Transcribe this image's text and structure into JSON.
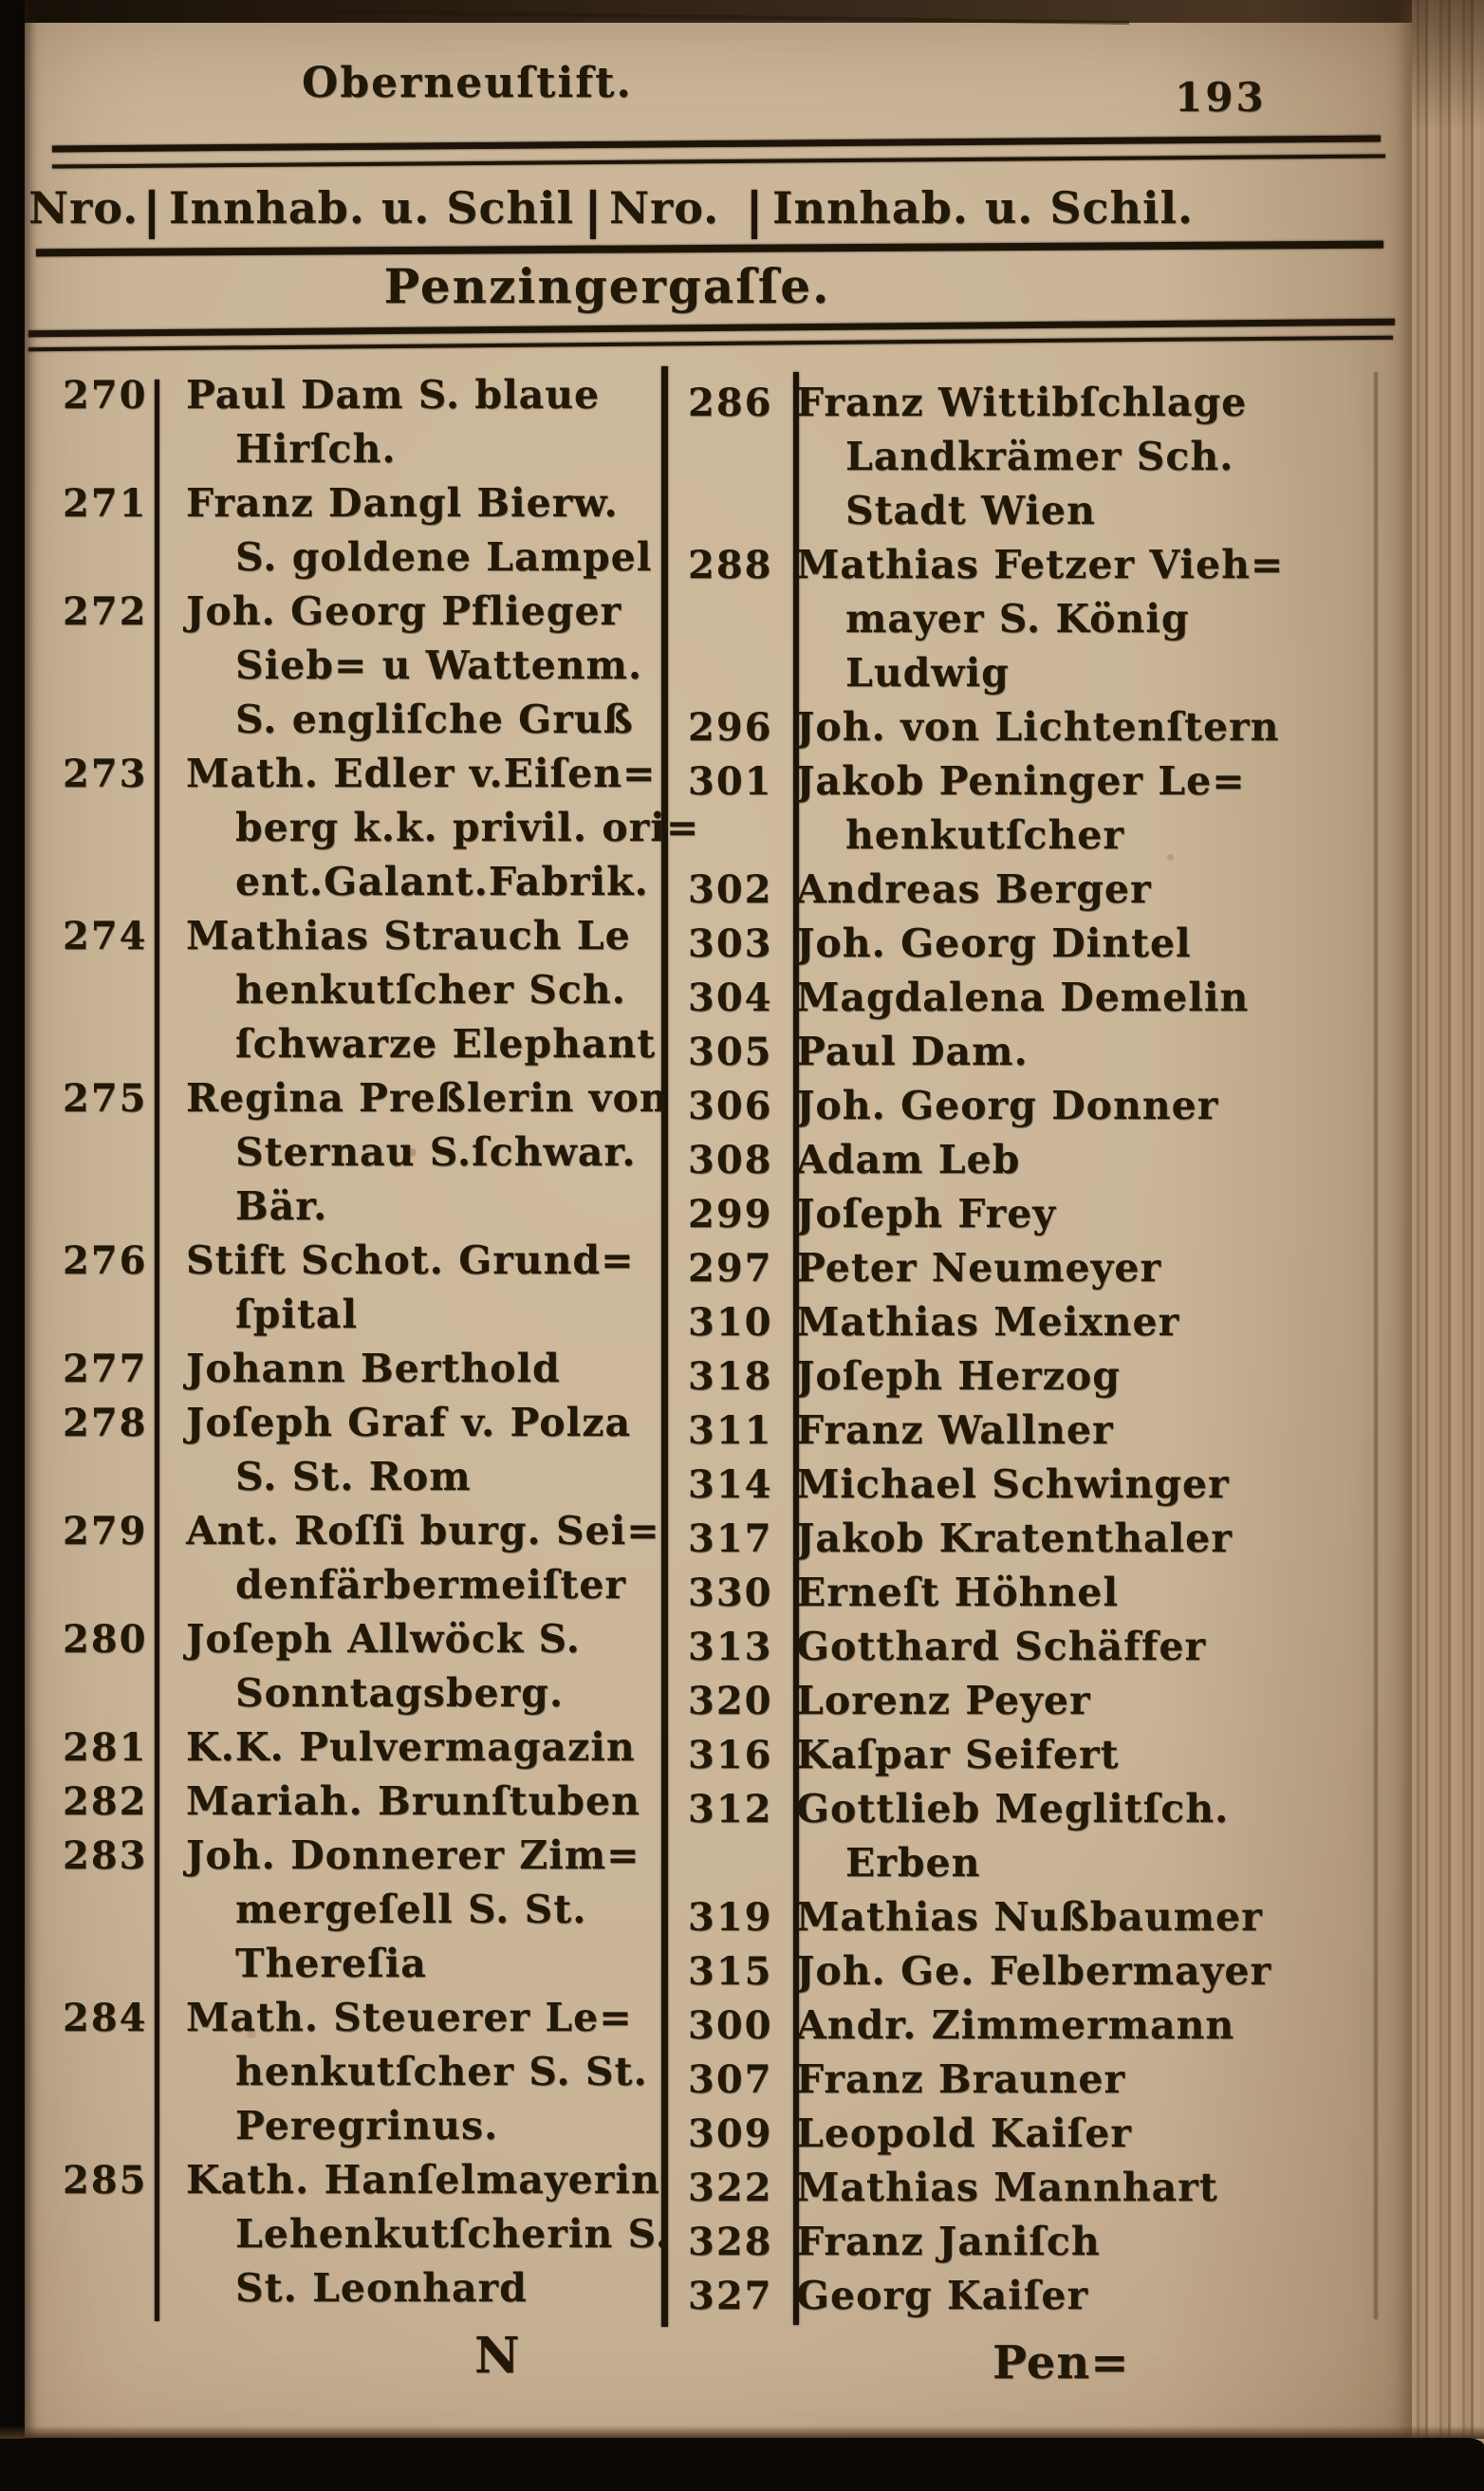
{
  "colors": {
    "paper": "#c9b497",
    "ink": "#221808",
    "fore_edge_band": "#a98c6b",
    "scan_border": "#0c0806"
  },
  "header": {
    "running_title": "Oberneuſtift.",
    "page_number": "193",
    "columns_header": {
      "nro_left": "Nro.",
      "label_left": "Innhab. u. Schil",
      "nro_right": "Nro.",
      "label_right": "Innhab. u. Schil."
    },
    "section_title": "Penzingergaſſe."
  },
  "left_column": {
    "entries": [
      {
        "nro": "270",
        "lines": [
          "Paul Dam S. blaue",
          "Hirſch."
        ]
      },
      {
        "nro": "271",
        "lines": [
          "Franz Dangl Bierw.",
          "S. goldene Lampel"
        ]
      },
      {
        "nro": "272",
        "lines": [
          "Joh. Georg Pflieger",
          "Sieb= u Wattenm.",
          "S. engliſche Gruß"
        ]
      },
      {
        "nro": "273",
        "lines": [
          "Math. Edler v.Eiſen=",
          "berg k.k. privil. ori=",
          "ent.Galant.Fabrik."
        ]
      },
      {
        "nro": "274",
        "lines": [
          "Mathias Strauch Le",
          "henkutſcher Sch.",
          "ſchwarze Elephant"
        ]
      },
      {
        "nro": "275",
        "lines": [
          "Regina Preßlerin von",
          "Sternau S.ſchwar.",
          "Bär."
        ]
      },
      {
        "nro": "276",
        "lines": [
          "Stift Schot. Grund=",
          "ſpital"
        ]
      },
      {
        "nro": "277",
        "lines": [
          "Johann Berthold"
        ]
      },
      {
        "nro": "278",
        "lines": [
          "Joſeph Graf v. Polza",
          "S. St. Rom"
        ]
      },
      {
        "nro": "279",
        "lines": [
          "Ant. Roſſi burg. Sei=",
          "denfärbermeiſter"
        ]
      },
      {
        "nro": "280",
        "lines": [
          "Joſeph Allwöck S.",
          "Sonntagsberg."
        ]
      },
      {
        "nro": "281",
        "lines": [
          "K.K. Pulvermagazin"
        ]
      },
      {
        "nro": "282",
        "lines": [
          "Mariah. Brunſtuben"
        ]
      },
      {
        "nro": "283",
        "lines": [
          "Joh. Donnerer Zim=",
          "mergeſell S. St.",
          "Thereſia"
        ]
      },
      {
        "nro": "284",
        "lines": [
          "Math. Steuerer Le=",
          "henkutſcher S. St.",
          "Peregrinus."
        ]
      },
      {
        "nro": "285",
        "lines": [
          "Kath. Hanſelmayerin",
          "Lehenkutſcherin S.",
          "St. Leonhard"
        ]
      }
    ]
  },
  "right_column": {
    "entries": [
      {
        "nro": "286",
        "lines": [
          "Franz Wittibſchlage",
          "Landkrämer Sch.",
          "Stadt Wien"
        ]
      },
      {
        "nro": "288",
        "lines": [
          "Mathias Fetzer Vieh=",
          "mayer S. König",
          "Ludwig"
        ]
      },
      {
        "nro": "296",
        "lines": [
          "Joh. von Lichtenſtern"
        ]
      },
      {
        "nro": "301",
        "lines": [
          "Jakob Peninger Le=",
          "henkutſcher"
        ]
      },
      {
        "nro": "302",
        "lines": [
          "Andreas Berger"
        ]
      },
      {
        "nro": "303",
        "lines": [
          "Joh. Georg Dintel"
        ]
      },
      {
        "nro": "304",
        "lines": [
          "Magdalena Demelin"
        ]
      },
      {
        "nro": "305",
        "lines": [
          "Paul Dam."
        ]
      },
      {
        "nro": "306",
        "lines": [
          "Joh. Georg Donner"
        ]
      },
      {
        "nro": "308",
        "lines": [
          "Adam Leb"
        ]
      },
      {
        "nro": "299",
        "lines": [
          "Joſeph Frey"
        ]
      },
      {
        "nro": "297",
        "lines": [
          "Peter Neumeyer"
        ]
      },
      {
        "nro": "310",
        "lines": [
          "Mathias Meixner"
        ]
      },
      {
        "nro": "318",
        "lines": [
          "Joſeph Herzog"
        ]
      },
      {
        "nro": "311",
        "lines": [
          "Franz Wallner"
        ]
      },
      {
        "nro": "314",
        "lines": [
          "Michael Schwinger"
        ]
      },
      {
        "nro": "317",
        "lines": [
          "Jakob Kratenthaler"
        ]
      },
      {
        "nro": "330",
        "lines": [
          "Erneſt Höhnel"
        ]
      },
      {
        "nro": "313",
        "lines": [
          "Gotthard Schäffer"
        ]
      },
      {
        "nro": "320",
        "lines": [
          "Lorenz Peyer"
        ]
      },
      {
        "nro": "316",
        "lines": [
          "Kaſpar Seifert"
        ]
      },
      {
        "nro": "312",
        "lines": [
          "Gottlieb Meglitſch.",
          "Erben"
        ]
      },
      {
        "nro": "319",
        "lines": [
          "Mathias Nußbaumer"
        ]
      },
      {
        "nro": "315",
        "lines": [
          "Joh. Ge. Felbermayer"
        ]
      },
      {
        "nro": "300",
        "lines": [
          "Andr. Zimmermann"
        ]
      },
      {
        "nro": "307",
        "lines": [
          "Franz Brauner"
        ]
      },
      {
        "nro": "309",
        "lines": [
          "Leopold Kaiſer"
        ]
      },
      {
        "nro": "322",
        "lines": [
          "Mathias Mannhart"
        ]
      },
      {
        "nro": "328",
        "lines": [
          "Franz Janiſch"
        ]
      },
      {
        "nro": "327",
        "lines": [
          "Georg Kaiſer"
        ]
      }
    ]
  },
  "footer": {
    "signature_mark": "N",
    "catchword": "Pen="
  }
}
